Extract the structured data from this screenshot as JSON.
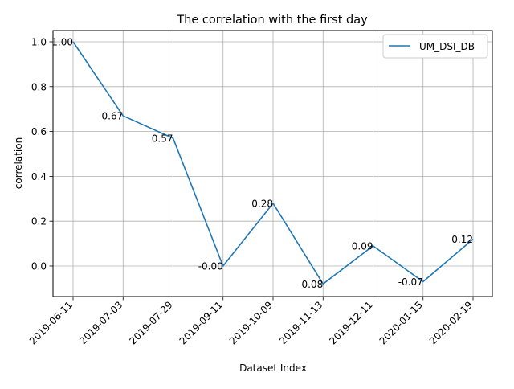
{
  "chart_data": {
    "type": "line",
    "title": "The correlation with the first day",
    "xlabel": "Dataset Index",
    "ylabel": "correlation",
    "categories": [
      "2019-06-11",
      "2019-07-03",
      "2019-07-29",
      "2019-09-11",
      "2019-10-09",
      "2019-11-13",
      "2019-12-11",
      "2020-01-15",
      "2020-02-19"
    ],
    "series": [
      {
        "name": "UM_DSI_DB",
        "values": [
          1.0,
          0.67,
          0.57,
          -0.0,
          0.28,
          -0.08,
          0.09,
          -0.07,
          0.12
        ],
        "labels": [
          "1.00",
          "0.67",
          "0.57",
          "-0.00",
          "0.28",
          "-0.08",
          "0.09",
          "-0.07",
          "0.12"
        ],
        "color": "#1f77b4"
      }
    ],
    "yticks": [
      "0.0",
      "0.2",
      "0.4",
      "0.6",
      "0.8",
      "1.0"
    ],
    "ylim": [
      -0.08,
      1.05
    ],
    "grid": true,
    "legend_position": "top-right"
  }
}
